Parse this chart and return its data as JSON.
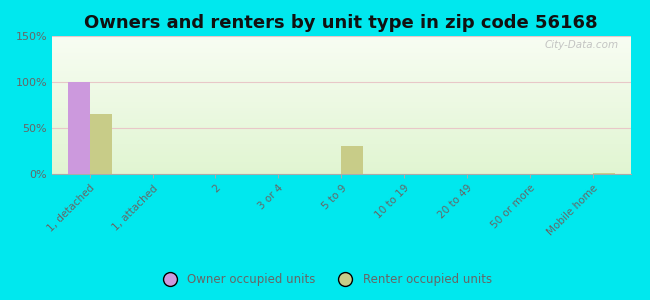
{
  "title": "Owners and renters by unit type in zip code 56168",
  "categories": [
    "1, detached",
    "1, attached",
    "2",
    "3 or 4",
    "5 to 9",
    "10 to 19",
    "20 to 49",
    "50 or more",
    "Mobile home"
  ],
  "owner_values": [
    100,
    0,
    0,
    0,
    0,
    0,
    0,
    0,
    0
  ],
  "renter_values": [
    65,
    0,
    0,
    0,
    30,
    0,
    0,
    0,
    1.5
  ],
  "owner_color": "#cc99dd",
  "renter_color": "#c8cc88",
  "ylim": [
    0,
    150
  ],
  "yticks": [
    0,
    50,
    100,
    150
  ],
  "ytick_labels": [
    "0%",
    "50%",
    "100%",
    "150%"
  ],
  "bg_outer": "#00e8ee",
  "bar_width": 0.35,
  "legend_owner": "Owner occupied units",
  "legend_renter": "Renter occupied units",
  "title_fontsize": 13,
  "watermark": "City-Data.com",
  "grid_color": "#e8c8c8",
  "tick_label_color": "#666666"
}
